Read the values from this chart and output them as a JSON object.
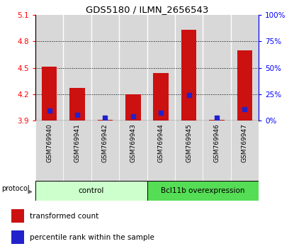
{
  "title": "GDS5180 / ILMN_2656543",
  "samples": [
    "GSM769940",
    "GSM769941",
    "GSM769942",
    "GSM769943",
    "GSM769944",
    "GSM769945",
    "GSM769946",
    "GSM769947"
  ],
  "red_values": [
    4.51,
    4.27,
    3.91,
    4.2,
    4.44,
    4.93,
    3.91,
    4.7
  ],
  "blue_values": [
    4.01,
    3.96,
    3.93,
    3.95,
    3.99,
    4.19,
    3.93,
    4.03
  ],
  "base": 3.9,
  "ylim": [
    3.9,
    5.1
  ],
  "yticks_left": [
    3.9,
    4.2,
    4.5,
    4.8,
    5.1
  ],
  "yticks_right_vals": [
    0,
    25,
    50,
    75,
    100
  ],
  "yticks_right_pos": [
    3.9,
    4.2,
    4.5,
    4.8,
    5.1
  ],
  "ctrl_color_light": "#ccffcc",
  "ctrl_color_dark": "#55dd55",
  "bar_color": "#cc1111",
  "blue_color": "#2222cc",
  "bar_width": 0.55,
  "col_bg_color": "#d8d8d8",
  "legend_items": [
    {
      "color": "#cc1111",
      "label": "transformed count"
    },
    {
      "color": "#2222cc",
      "label": "percentile rank within the sample"
    }
  ]
}
